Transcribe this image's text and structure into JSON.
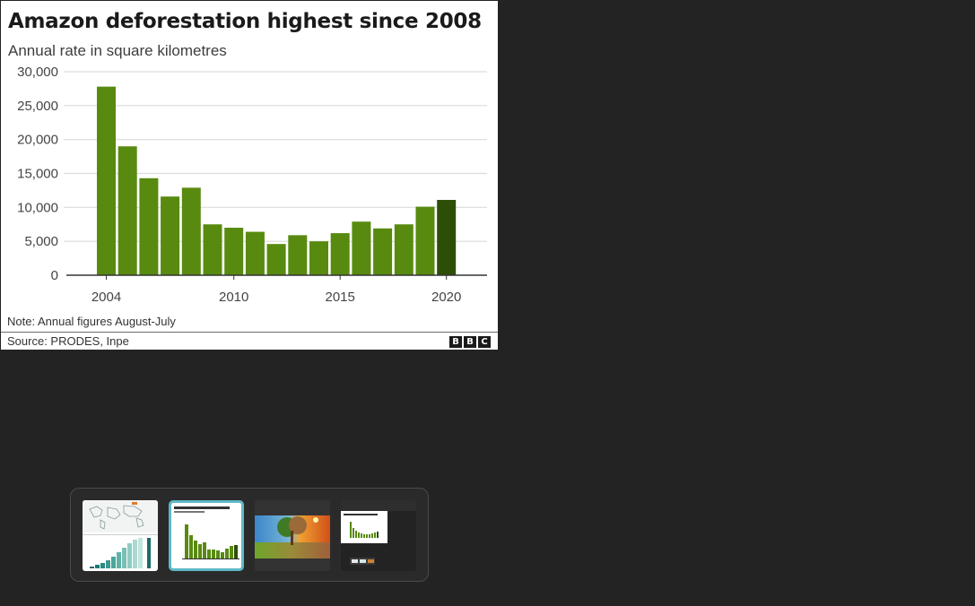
{
  "viewer": {
    "image": {
      "title": "Amazon deforestation highest since 2008",
      "subtitle": "Annual rate in square kilometres",
      "note": "Note: Annual figures August-July",
      "source": "Source: PRODES, Inpe",
      "logo_letters": [
        "B",
        "B",
        "C"
      ]
    }
  },
  "chart_data": {
    "type": "bar",
    "title": "Amazon deforestation highest since 2008",
    "subtitle": "Annual rate in square kilometres",
    "x": [
      2004,
      2005,
      2006,
      2007,
      2008,
      2009,
      2010,
      2011,
      2012,
      2013,
      2014,
      2015,
      2016,
      2017,
      2018,
      2019,
      2020
    ],
    "values": [
      27800,
      19000,
      14300,
      11600,
      12900,
      7500,
      7000,
      6400,
      4600,
      5900,
      5000,
      6200,
      7900,
      6900,
      7500,
      10100,
      11100
    ],
    "xticks": [
      "2004",
      "2010",
      "2015",
      "2020"
    ],
    "yticks": [
      "0",
      "5,000",
      "10,000",
      "15,000",
      "20,000",
      "25,000",
      "30,000"
    ],
    "ylim": [
      0,
      30000
    ],
    "grid": true,
    "colors": {
      "bar": "#588a10",
      "highlight": "#2d4e07"
    },
    "highlight_index": 16
  },
  "filmstrip": {
    "selected_index": 1,
    "thumbnails": [
      {
        "name": "thumb-world-map-chart"
      },
      {
        "name": "thumb-deforestation-chart"
      },
      {
        "name": "thumb-climate-tree-photo"
      },
      {
        "name": "thumb-screenshot-viewer"
      }
    ]
  }
}
